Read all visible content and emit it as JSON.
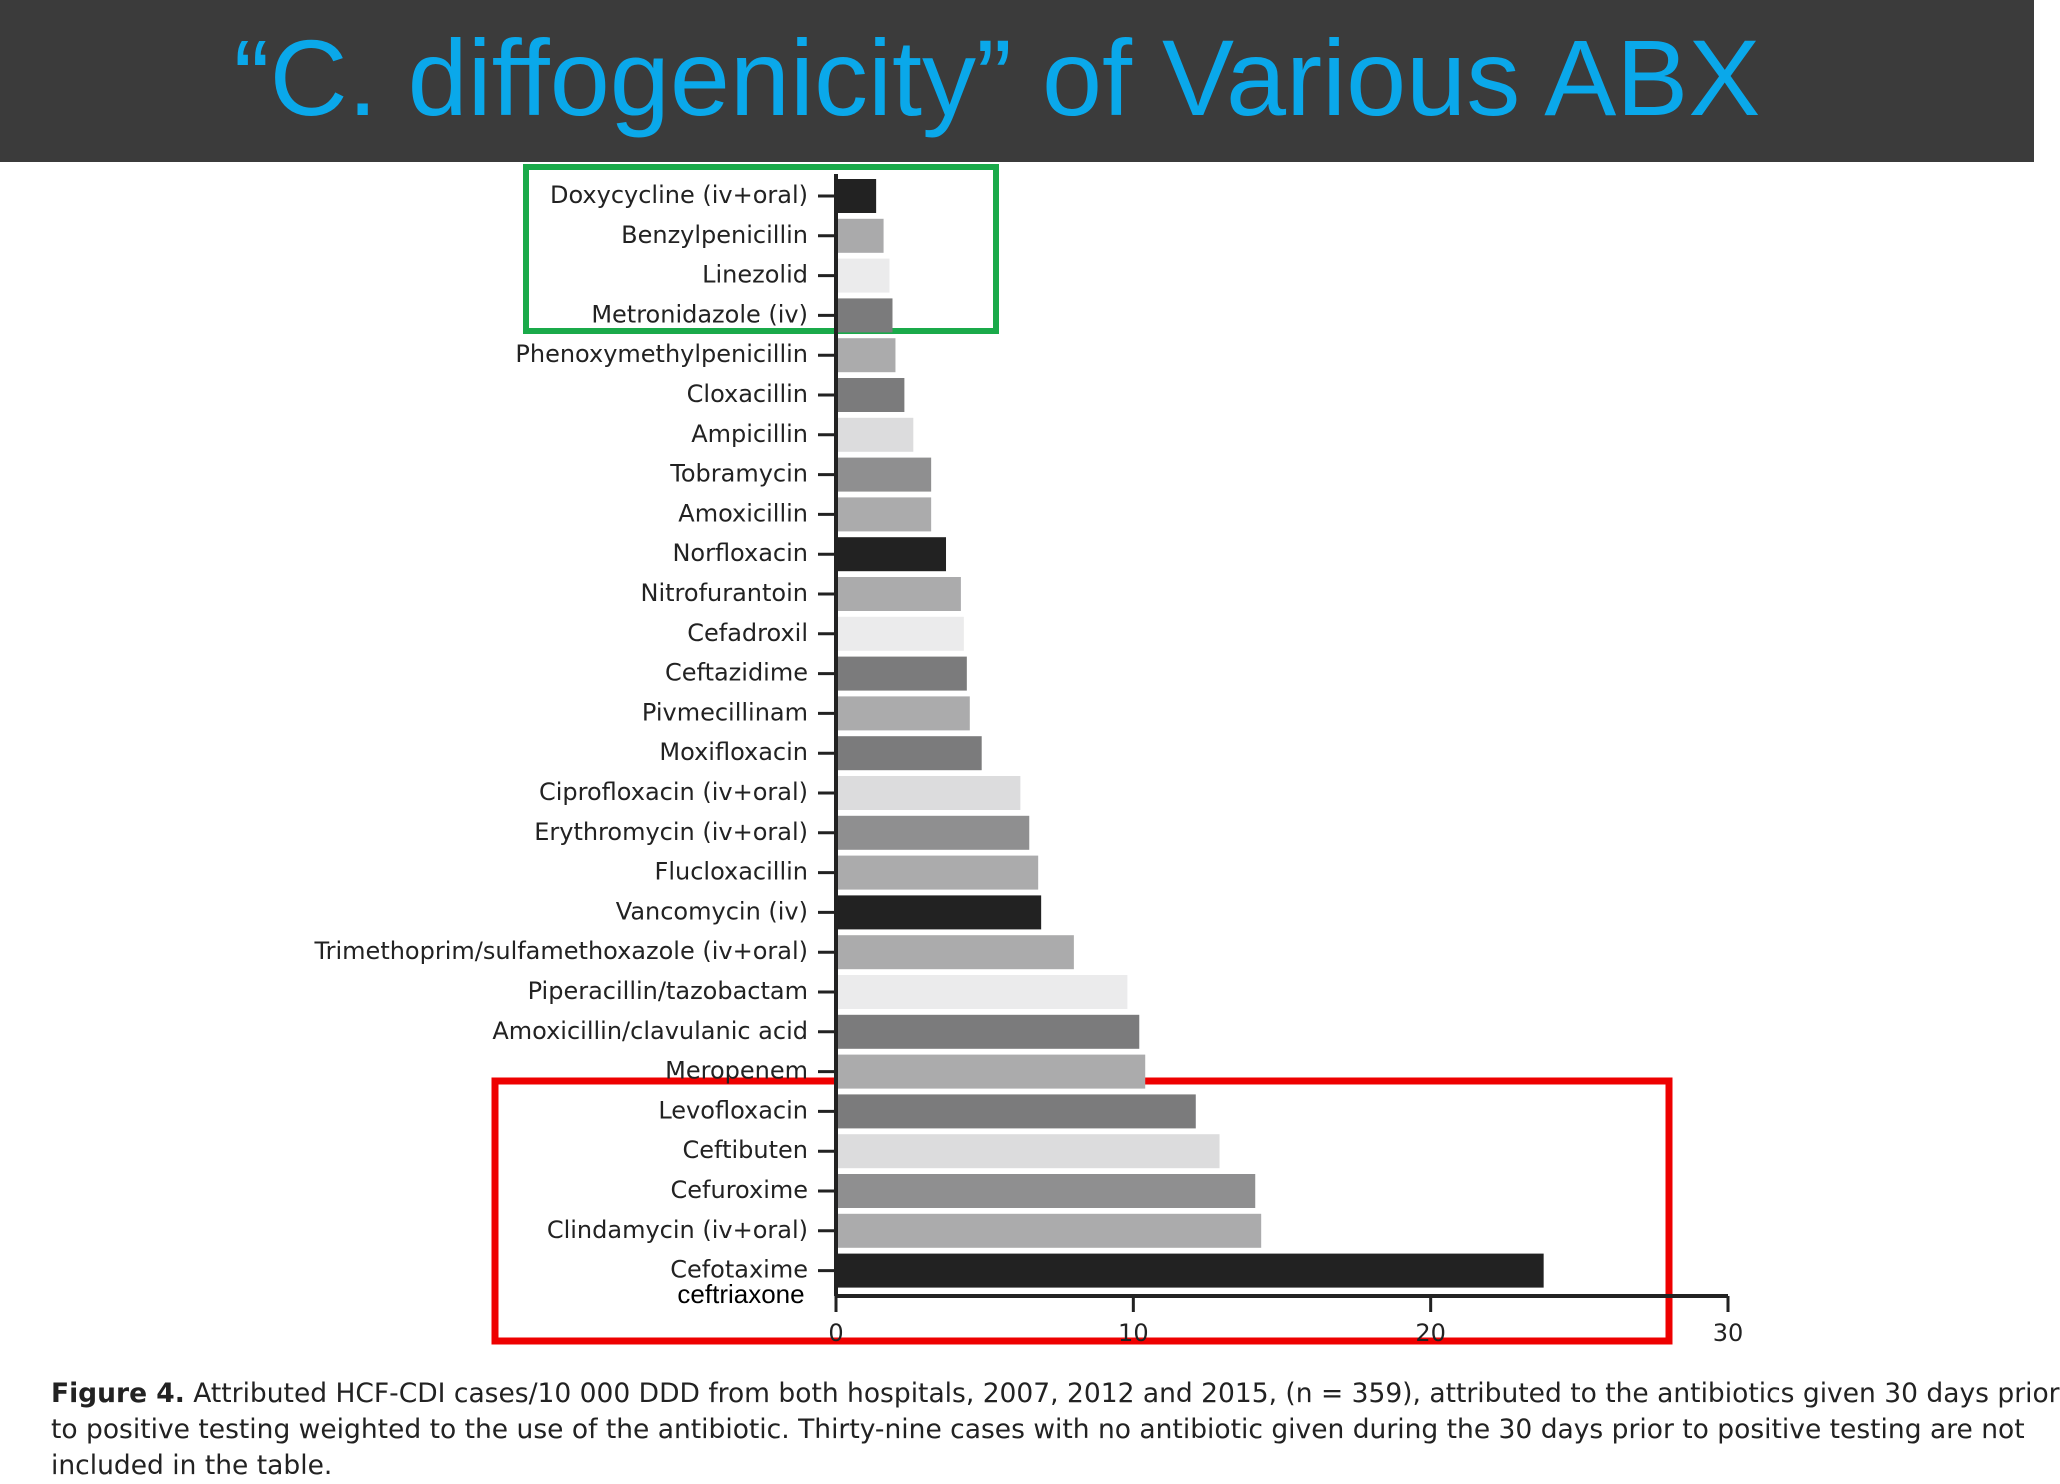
{
  "slide_title": "“C. diffogenicity” of Various ABX",
  "chart_data": {
    "type": "barh",
    "categories": [
      "Doxycycline (iv+oral)",
      "Benzylpenicillin",
      "Linezolid",
      "Metronidazole (iv)",
      "Phenoxymethylpenicillin",
      "Cloxacillin",
      "Ampicillin",
      "Tobramycin",
      "Amoxicillin",
      "Norfloxacin",
      "Nitrofurantoin",
      "Cefadroxil",
      "Ceftazidime",
      "Pivmecillinam",
      "Moxifloxacin",
      "Ciprofloxacin (iv+oral)",
      "Erythromycin (iv+oral)",
      "Flucloxacillin",
      "Vancomycin (iv)",
      "Trimethoprim/sulfamethoxazole (iv+oral)",
      "Piperacillin/tazobactam",
      "Amoxicillin/clavulanic acid",
      "Meropenem",
      "Levofloxacin",
      "Ceftibuten",
      "Cefuroxime",
      "Clindamycin (iv+oral)",
      "Cefotaxime"
    ],
    "values": [
      1.35,
      1.6,
      1.8,
      1.9,
      2.0,
      2.3,
      2.6,
      3.2,
      3.2,
      3.7,
      4.2,
      4.3,
      4.4,
      4.5,
      4.9,
      6.2,
      6.5,
      6.8,
      6.9,
      8.0,
      9.8,
      10.2,
      10.4,
      12.1,
      12.9,
      14.1,
      14.3,
      23.8
    ],
    "colors": [
      "#222222",
      "#aaaaab",
      "#ebebec",
      "#7b7b7c",
      "#ababac",
      "#7b7b7c",
      "#dcdcdd",
      "#8f8f90",
      "#ababac",
      "#222222",
      "#ababac",
      "#ebebec",
      "#7b7b7c",
      "#ababac",
      "#7b7b7c",
      "#dcdcdd",
      "#8f8f90",
      "#ababac",
      "#222222",
      "#ababac",
      "#ebebec",
      "#7b7b7c",
      "#ababac",
      "#7b7b7c",
      "#dcdcdd",
      "#8f8f90",
      "#ababac",
      "#222222"
    ],
    "xlim": [
      0,
      30
    ],
    "xticks": [
      0,
      10,
      20,
      30
    ],
    "annotation": "ceftriaxone"
  },
  "caption": {
    "label": "Figure 4.",
    "lines": [
      "Attributed HCF-CDI cases/10 000 DDD from both hospitals, 2007, 2012 and 2015, (n = 359), attributed to the antibiotics given 30 days prior",
      "to positive testing weighted to the use of the antibiotic. Thirty-nine cases with no antibiotic given during the 30 days prior to positive testing are not",
      "included in the table."
    ]
  }
}
